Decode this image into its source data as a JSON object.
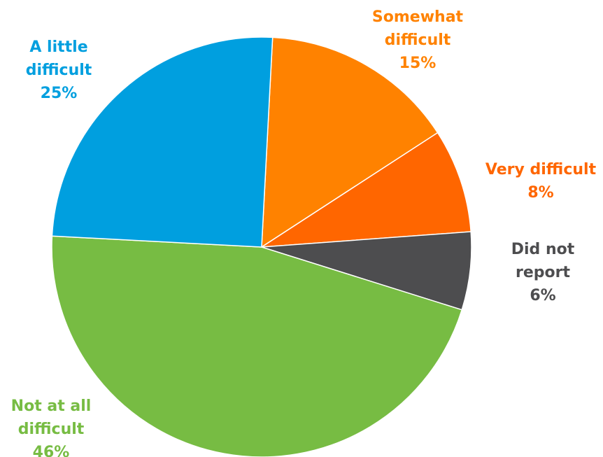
{
  "chart_data": {
    "type": "pie",
    "title": "",
    "slices": [
      {
        "label": "Somewhat difficult",
        "lines": [
          "Somewhat",
          "difficult"
        ],
        "value": 15,
        "value_label": "15%",
        "color": "#FF8200"
      },
      {
        "label": "Very difficult",
        "lines": [
          "Very difficult"
        ],
        "value": 8,
        "value_label": "8%",
        "color": "#FF6600"
      },
      {
        "label": "Did not report",
        "lines": [
          "Did not",
          "report"
        ],
        "value": 6,
        "value_label": "6%",
        "color": "#4D4D4F"
      },
      {
        "label": "Not at all difficult",
        "lines": [
          "Not at all",
          "difficult"
        ],
        "value": 46,
        "value_label": "46%",
        "color": "#77BC43"
      },
      {
        "label": "A little difficult",
        "lines": [
          "A little",
          "difficult"
        ],
        "value": 25,
        "value_label": "25%",
        "color": "#009FDF"
      }
    ],
    "start_angle_deg": 3,
    "direction": "clockwise",
    "legend": "none"
  }
}
